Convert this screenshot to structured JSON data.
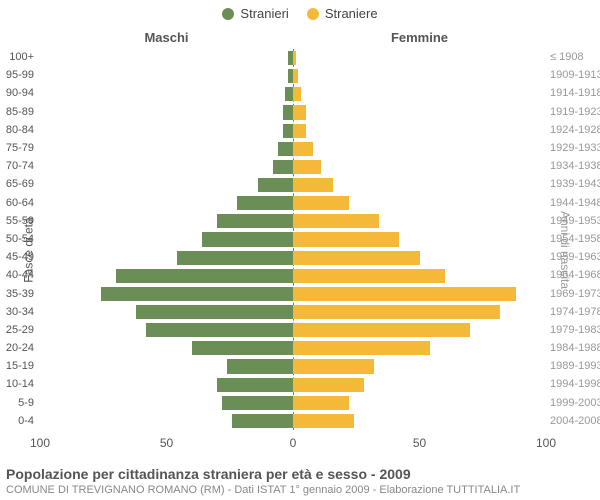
{
  "chart": {
    "type": "population-pyramid",
    "legend": {
      "male": {
        "label": "Stranieri",
        "color": "#6b8e57"
      },
      "female": {
        "label": "Straniere",
        "color": "#f5b93a"
      }
    },
    "column_titles": {
      "left": "Maschi",
      "right": "Femmine"
    },
    "left_axis_title": "Fasce di età",
    "right_axis_title": "Anni di nascita",
    "x_axis": {
      "max": 100,
      "ticks": [
        100,
        50,
        0,
        50,
        100
      ]
    },
    "grid_color": "#e0e0e0",
    "center_line_color": "#777777",
    "background_color": "#ffffff",
    "label_color": "#555555",
    "year_label_color": "#999999",
    "label_fontsize": 11,
    "title_fontsize": 14,
    "bar_height_pct": 78,
    "brackets": [
      {
        "age": "100+",
        "years": "≤ 1908",
        "male": 2,
        "female": 1
      },
      {
        "age": "95-99",
        "years": "1909-1913",
        "male": 2,
        "female": 2
      },
      {
        "age": "90-94",
        "years": "1914-1918",
        "male": 3,
        "female": 3
      },
      {
        "age": "85-89",
        "years": "1919-1923",
        "male": 4,
        "female": 5
      },
      {
        "age": "80-84",
        "years": "1924-1928",
        "male": 4,
        "female": 5
      },
      {
        "age": "75-79",
        "years": "1929-1933",
        "male": 6,
        "female": 8
      },
      {
        "age": "70-74",
        "years": "1934-1938",
        "male": 8,
        "female": 11
      },
      {
        "age": "65-69",
        "years": "1939-1943",
        "male": 14,
        "female": 16
      },
      {
        "age": "60-64",
        "years": "1944-1948",
        "male": 22,
        "female": 22
      },
      {
        "age": "55-59",
        "years": "1949-1953",
        "male": 30,
        "female": 34
      },
      {
        "age": "50-54",
        "years": "1954-1958",
        "male": 36,
        "female": 42
      },
      {
        "age": "45-49",
        "years": "1959-1963",
        "male": 46,
        "female": 50
      },
      {
        "age": "40-44",
        "years": "1964-1968",
        "male": 70,
        "female": 60
      },
      {
        "age": "35-39",
        "years": "1969-1973",
        "male": 76,
        "female": 88
      },
      {
        "age": "30-34",
        "years": "1974-1978",
        "male": 62,
        "female": 82
      },
      {
        "age": "25-29",
        "years": "1979-1983",
        "male": 58,
        "female": 70
      },
      {
        "age": "20-24",
        "years": "1984-1988",
        "male": 40,
        "female": 54
      },
      {
        "age": "15-19",
        "years": "1989-1993",
        "male": 26,
        "female": 32
      },
      {
        "age": "10-14",
        "years": "1994-1998",
        "male": 30,
        "female": 28
      },
      {
        "age": "5-9",
        "years": "1999-2003",
        "male": 28,
        "female": 22
      },
      {
        "age": "0-4",
        "years": "2004-2008",
        "male": 24,
        "female": 24
      }
    ]
  },
  "footer": {
    "title": "Popolazione per cittadinanza straniera per età e sesso - 2009",
    "subtitle": "COMUNE DI TREVIGNANO ROMANO (RM) - Dati ISTAT 1° gennaio 2009 - Elaborazione TUTTITALIA.IT"
  }
}
